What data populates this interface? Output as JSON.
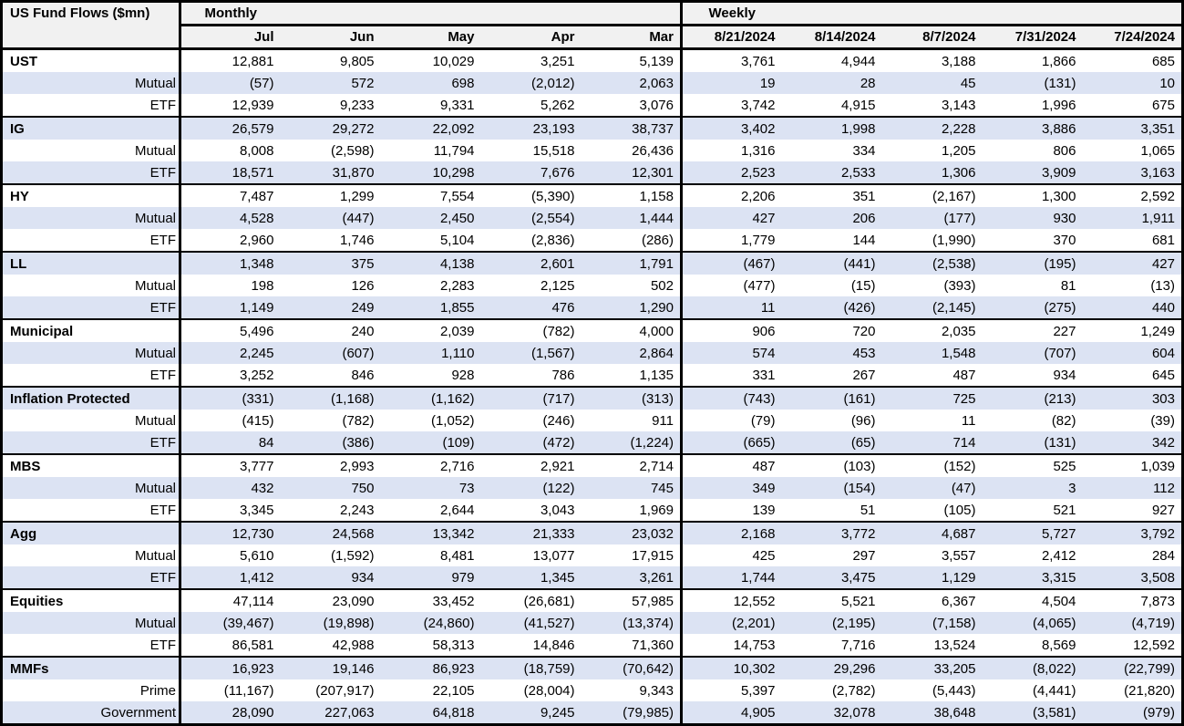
{
  "colors": {
    "stripe": "#DCE3F3",
    "header_bg": "#F1F1F1",
    "border": "#000000",
    "text": "#000000"
  },
  "chart_data": {
    "type": "table",
    "title": "US Fund Flows ($mn)",
    "column_groups": [
      {
        "label": "Monthly",
        "columns": [
          "Jul",
          "Jun",
          "May",
          "Apr",
          "Mar"
        ]
      },
      {
        "label": "Weekly",
        "columns": [
          "8/21/2024",
          "8/14/2024",
          "8/7/2024",
          "7/31/2024",
          "7/24/2024"
        ]
      }
    ],
    "groups": [
      {
        "name": "UST",
        "rows": [
          {
            "label": "UST",
            "monthly": [
              "12,881",
              "9,805",
              "10,029",
              "3,251",
              "5,139"
            ],
            "weekly": [
              "3,761",
              "4,944",
              "3,188",
              "1,866",
              "685"
            ]
          },
          {
            "label": "Mutual",
            "monthly": [
              "(57)",
              "572",
              "698",
              "(2,012)",
              "2,063"
            ],
            "weekly": [
              "19",
              "28",
              "45",
              "(131)",
              "10"
            ]
          },
          {
            "label": "ETF",
            "monthly": [
              "12,939",
              "9,233",
              "9,331",
              "5,262",
              "3,076"
            ],
            "weekly": [
              "3,742",
              "4,915",
              "3,143",
              "1,996",
              "675"
            ]
          }
        ]
      },
      {
        "name": "IG",
        "rows": [
          {
            "label": "IG",
            "monthly": [
              "26,579",
              "29,272",
              "22,092",
              "23,193",
              "38,737"
            ],
            "weekly": [
              "3,402",
              "1,998",
              "2,228",
              "3,886",
              "3,351"
            ]
          },
          {
            "label": "Mutual",
            "monthly": [
              "8,008",
              "(2,598)",
              "11,794",
              "15,518",
              "26,436"
            ],
            "weekly": [
              "1,316",
              "334",
              "1,205",
              "806",
              "1,065"
            ]
          },
          {
            "label": "ETF",
            "monthly": [
              "18,571",
              "31,870",
              "10,298",
              "7,676",
              "12,301"
            ],
            "weekly": [
              "2,523",
              "2,533",
              "1,306",
              "3,909",
              "3,163"
            ]
          }
        ]
      },
      {
        "name": "HY",
        "rows": [
          {
            "label": "HY",
            "monthly": [
              "7,487",
              "1,299",
              "7,554",
              "(5,390)",
              "1,158"
            ],
            "weekly": [
              "2,206",
              "351",
              "(2,167)",
              "1,300",
              "2,592"
            ]
          },
          {
            "label": "Mutual",
            "monthly": [
              "4,528",
              "(447)",
              "2,450",
              "(2,554)",
              "1,444"
            ],
            "weekly": [
              "427",
              "206",
              "(177)",
              "930",
              "1,911"
            ]
          },
          {
            "label": "ETF",
            "monthly": [
              "2,960",
              "1,746",
              "5,104",
              "(2,836)",
              "(286)"
            ],
            "weekly": [
              "1,779",
              "144",
              "(1,990)",
              "370",
              "681"
            ]
          }
        ]
      },
      {
        "name": "LL",
        "rows": [
          {
            "label": "LL",
            "monthly": [
              "1,348",
              "375",
              "4,138",
              "2,601",
              "1,791"
            ],
            "weekly": [
              "(467)",
              "(441)",
              "(2,538)",
              "(195)",
              "427"
            ]
          },
          {
            "label": "Mutual",
            "monthly": [
              "198",
              "126",
              "2,283",
              "2,125",
              "502"
            ],
            "weekly": [
              "(477)",
              "(15)",
              "(393)",
              "81",
              "(13)"
            ]
          },
          {
            "label": "ETF",
            "monthly": [
              "1,149",
              "249",
              "1,855",
              "476",
              "1,290"
            ],
            "weekly": [
              "11",
              "(426)",
              "(2,145)",
              "(275)",
              "440"
            ]
          }
        ]
      },
      {
        "name": "Municipal",
        "rows": [
          {
            "label": "Municipal",
            "monthly": [
              "5,496",
              "240",
              "2,039",
              "(782)",
              "4,000"
            ],
            "weekly": [
              "906",
              "720",
              "2,035",
              "227",
              "1,249"
            ]
          },
          {
            "label": "Mutual",
            "monthly": [
              "2,245",
              "(607)",
              "1,110",
              "(1,567)",
              "2,864"
            ],
            "weekly": [
              "574",
              "453",
              "1,548",
              "(707)",
              "604"
            ]
          },
          {
            "label": "ETF",
            "monthly": [
              "3,252",
              "846",
              "928",
              "786",
              "1,135"
            ],
            "weekly": [
              "331",
              "267",
              "487",
              "934",
              "645"
            ]
          }
        ]
      },
      {
        "name": "Inflation Protected",
        "rows": [
          {
            "label": "Inflation Protected",
            "monthly": [
              "(331)",
              "(1,168)",
              "(1,162)",
              "(717)",
              "(313)"
            ],
            "weekly": [
              "(743)",
              "(161)",
              "725",
              "(213)",
              "303"
            ]
          },
          {
            "label": "Mutual",
            "monthly": [
              "(415)",
              "(782)",
              "(1,052)",
              "(246)",
              "911"
            ],
            "weekly": [
              "(79)",
              "(96)",
              "11",
              "(82)",
              "(39)"
            ]
          },
          {
            "label": "ETF",
            "monthly": [
              "84",
              "(386)",
              "(109)",
              "(472)",
              "(1,224)"
            ],
            "weekly": [
              "(665)",
              "(65)",
              "714",
              "(131)",
              "342"
            ]
          }
        ]
      },
      {
        "name": "MBS",
        "rows": [
          {
            "label": "MBS",
            "monthly": [
              "3,777",
              "2,993",
              "2,716",
              "2,921",
              "2,714"
            ],
            "weekly": [
              "487",
              "(103)",
              "(152)",
              "525",
              "1,039"
            ]
          },
          {
            "label": "Mutual",
            "monthly": [
              "432",
              "750",
              "73",
              "(122)",
              "745"
            ],
            "weekly": [
              "349",
              "(154)",
              "(47)",
              "3",
              "112"
            ]
          },
          {
            "label": "ETF",
            "monthly": [
              "3,345",
              "2,243",
              "2,644",
              "3,043",
              "1,969"
            ],
            "weekly": [
              "139",
              "51",
              "(105)",
              "521",
              "927"
            ]
          }
        ]
      },
      {
        "name": "Agg",
        "rows": [
          {
            "label": "Agg",
            "monthly": [
              "12,730",
              "24,568",
              "13,342",
              "21,333",
              "23,032"
            ],
            "weekly": [
              "2,168",
              "3,772",
              "4,687",
              "5,727",
              "3,792"
            ]
          },
          {
            "label": "Mutual",
            "monthly": [
              "5,610",
              "(1,592)",
              "8,481",
              "13,077",
              "17,915"
            ],
            "weekly": [
              "425",
              "297",
              "3,557",
              "2,412",
              "284"
            ]
          },
          {
            "label": "ETF",
            "monthly": [
              "1,412",
              "934",
              "979",
              "1,345",
              "3,261"
            ],
            "weekly": [
              "1,744",
              "3,475",
              "1,129",
              "3,315",
              "3,508"
            ]
          }
        ]
      },
      {
        "name": "Equities",
        "rows": [
          {
            "label": "Equities",
            "monthly": [
              "47,114",
              "23,090",
              "33,452",
              "(26,681)",
              "57,985"
            ],
            "weekly": [
              "12,552",
              "5,521",
              "6,367",
              "4,504",
              "7,873"
            ]
          },
          {
            "label": "Mutual",
            "monthly": [
              "(39,467)",
              "(19,898)",
              "(24,860)",
              "(41,527)",
              "(13,374)"
            ],
            "weekly": [
              "(2,201)",
              "(2,195)",
              "(7,158)",
              "(4,065)",
              "(4,719)"
            ]
          },
          {
            "label": "ETF",
            "monthly": [
              "86,581",
              "42,988",
              "58,313",
              "14,846",
              "71,360"
            ],
            "weekly": [
              "14,753",
              "7,716",
              "13,524",
              "8,569",
              "12,592"
            ]
          }
        ]
      },
      {
        "name": "MMFs",
        "rows": [
          {
            "label": "MMFs",
            "monthly": [
              "16,923",
              "19,146",
              "86,923",
              "(18,759)",
              "(70,642)"
            ],
            "weekly": [
              "10,302",
              "29,296",
              "33,205",
              "(8,022)",
              "(22,799)"
            ]
          },
          {
            "label": "Prime",
            "monthly": [
              "(11,167)",
              "(207,917)",
              "22,105",
              "(28,004)",
              "9,343"
            ],
            "weekly": [
              "5,397",
              "(2,782)",
              "(5,443)",
              "(4,441)",
              "(21,820)"
            ]
          },
          {
            "label": "Government",
            "monthly": [
              "28,090",
              "227,063",
              "64,818",
              "9,245",
              "(79,985)"
            ],
            "weekly": [
              "4,905",
              "32,078",
              "38,648",
              "(3,581)",
              "(979)"
            ]
          }
        ]
      }
    ]
  }
}
